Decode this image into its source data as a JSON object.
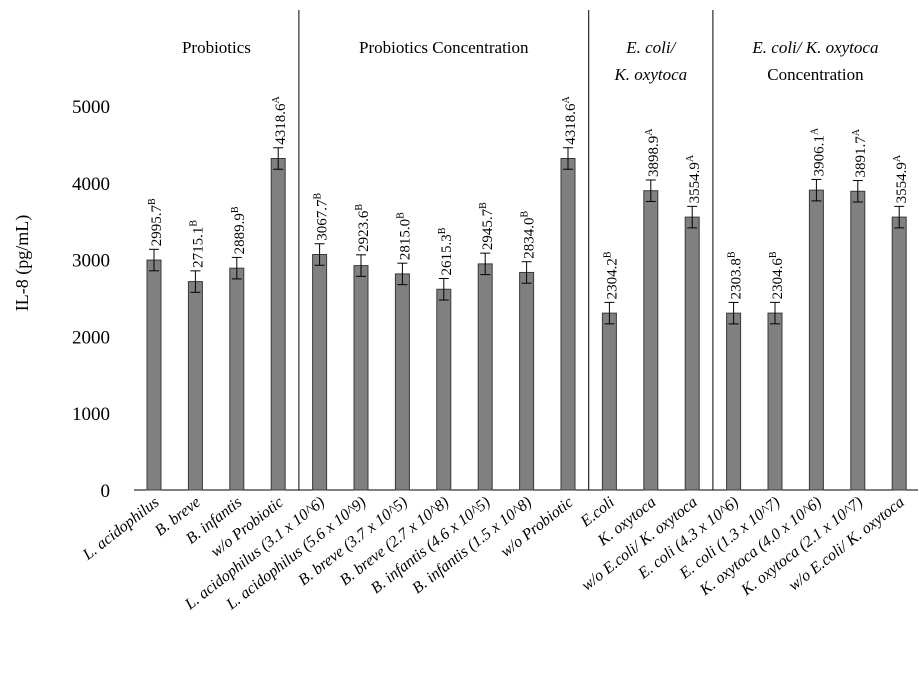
{
  "chart_data": {
    "type": "bar",
    "ylabel": "IL-8 (pg/mL)",
    "xlabel": "",
    "ylim": [
      0,
      5500
    ],
    "yticks": [
      0,
      1000,
      2000,
      3000,
      4000,
      5000
    ],
    "grid": false,
    "groups": [
      {
        "title_lines": [
          {
            "text": "Probiotics",
            "italic": false
          }
        ],
        "start": 0,
        "end": 3
      },
      {
        "title_lines": [
          {
            "text": "Probiotics Concentration",
            "italic": false
          }
        ],
        "start": 4,
        "end": 10
      },
      {
        "title_lines": [
          {
            "text": "E. coli/",
            "italic": true
          },
          {
            "text": "K. oxytoca",
            "italic": true
          }
        ],
        "start": 11,
        "end": 13
      },
      {
        "title_lines": [
          {
            "text": "E. coli/ K. oxytoca",
            "italic": true
          },
          {
            "text": "Concentration",
            "italic": false
          }
        ],
        "start": 14,
        "end": 18
      }
    ],
    "categories": [
      "L. acidophilus",
      "B. breve",
      "B. infantis",
      "w/o Probiotic",
      "L. acidophilus (3.1 x 10^6)",
      "L. acidophilus (5.6 x 10^9)",
      "B. breve (3.7 x 10^5)",
      "B. breve (2.7 x 10^8)",
      "B. infantis (4.6 x 10^5)",
      "B. infantis (1.5 x 10^8)",
      "w/o Probiotic",
      "E.coli",
      "K. oxytoca",
      "w/o E.coli/ K. oxytoca",
      "E. coli (4.3 x 10^6)",
      "E. coli (1.3 x 10^7)",
      "K. oxytoca (4.0 x 10^6)",
      "K. oxytoca (2.1 x 10^7)",
      "w/o E.coli/ K. oxytoca"
    ],
    "series": [
      {
        "color": "#808080",
        "values": [
          2995.7,
          2715.1,
          2889.9,
          4318.6,
          3067.7,
          2923.6,
          2815.0,
          2615.3,
          2945.7,
          2834.0,
          4318.6,
          2304.2,
          3898.9,
          3554.9,
          2303.8,
          2304.6,
          3906.1,
          3891.7,
          3554.9
        ],
        "errors": [
          140,
          140,
          140,
          140,
          140,
          140,
          140,
          140,
          140,
          140,
          140,
          140,
          140,
          140,
          140,
          140,
          140,
          140,
          140
        ],
        "value_labels": [
          "2995.7",
          "2715.1",
          "2889.9",
          "4318.6",
          "3067.7",
          "2923.6",
          "2815.0",
          "2615.3",
          "2945.7",
          "2834.0",
          "4318.6",
          "2304.2",
          "3898.9",
          "3554.9",
          "2303.8",
          "2304.6",
          "3906.1",
          "3891.7",
          "3554.9"
        ],
        "letters": [
          "B",
          "B",
          "B",
          "A",
          "B",
          "B",
          "B",
          "B",
          "B",
          "B",
          "A",
          "B",
          "A",
          "A",
          "B",
          "B",
          "A",
          "A",
          "A"
        ]
      }
    ]
  }
}
